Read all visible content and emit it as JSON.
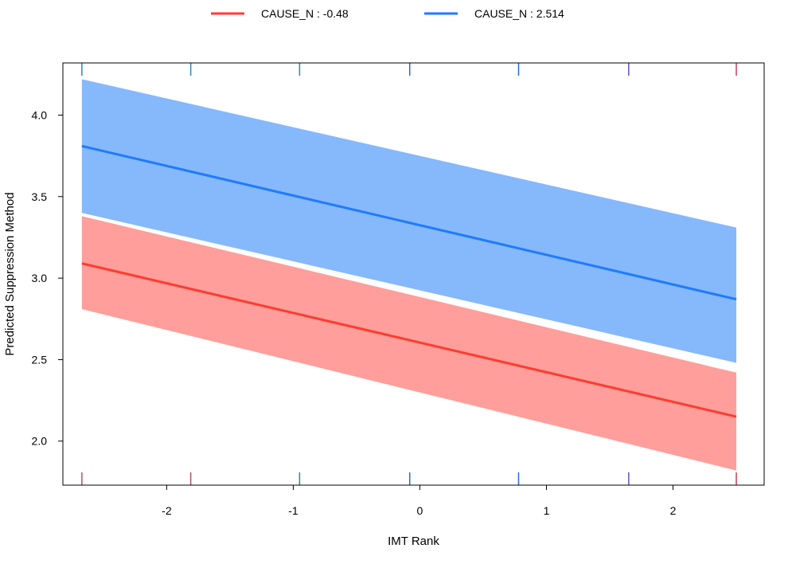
{
  "chart_data": {
    "type": "line",
    "xlabel": "IMT Rank",
    "ylabel": "Predicted Suppression Method",
    "xlim": [
      -2.82,
      2.72
    ],
    "ylim": [
      1.73,
      4.32
    ],
    "xticks": [
      -2,
      -1,
      0,
      1,
      2
    ],
    "xtick_labels": [
      "-2",
      "-1",
      "0",
      "1",
      "2"
    ],
    "yticks": [
      2.0,
      2.5,
      3.0,
      3.5,
      4.0
    ],
    "ytick_labels": [
      "2.0",
      "2.5",
      "3.0",
      "3.5",
      "4.0"
    ],
    "grid": false,
    "legend_position": "top",
    "series": [
      {
        "name": "CAUSE_N : -0.48",
        "color": "#ff3b30",
        "band_color": "#ff9e9a",
        "x": [
          -2.67,
          2.5
        ],
        "y": [
          3.09,
          2.15
        ],
        "lower": [
          2.81,
          1.82
        ],
        "upper": [
          3.38,
          2.42
        ]
      },
      {
        "name": "CAUSE_N : 2.514",
        "color": "#1e7bff",
        "band_color": "#86b8fc",
        "x": [
          -2.67,
          2.5
        ],
        "y": [
          3.81,
          2.87
        ],
        "lower": [
          3.4,
          2.48
        ],
        "upper": [
          4.22,
          3.31
        ]
      }
    ],
    "overlap_color": "#8a85d0",
    "rug_x": [
      -2.67,
      -1.81,
      -0.95,
      -0.08,
      0.78,
      1.65,
      2.5
    ],
    "rug_colors": [
      "#cc4b4b",
      "#b64d5e",
      "#2e8a8a",
      "#1e6fe0",
      "#1e6fe0",
      "#6a4fb8",
      "#c23f5a"
    ],
    "rug_top_colors": [
      "#2a86c0",
      "#2a86c0",
      "#2a86c0",
      "#1e6fe0",
      "#1e6fe0",
      "#6a4fb8",
      "#c23f5a"
    ]
  }
}
